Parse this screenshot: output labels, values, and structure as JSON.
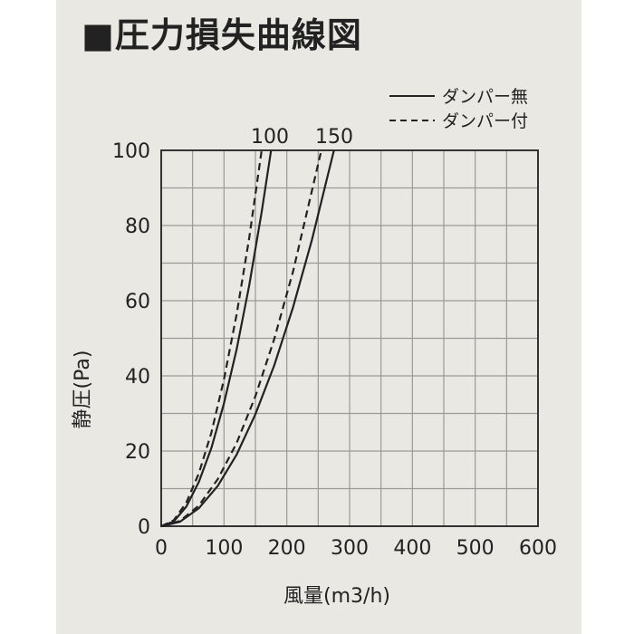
{
  "title": "■圧力損失曲線図",
  "chart_data": {
    "type": "line",
    "xlabel": "風量(m3/h)",
    "ylabel": "静圧(Pa)",
    "xlim": [
      0,
      600
    ],
    "ylim": [
      0,
      100
    ],
    "x_ticks": [
      "0",
      "100",
      "200",
      "300",
      "400",
      "500",
      "600"
    ],
    "y_ticks": [
      "0",
      "20",
      "40",
      "60",
      "80",
      "100"
    ],
    "grid": true,
    "legend_position": "top-right",
    "legend": [
      {
        "label": "ダンパー無",
        "style": "solid"
      },
      {
        "label": "ダンパー付",
        "style": "dashed"
      }
    ],
    "curve_labels": [
      "100",
      "150"
    ],
    "series": [
      {
        "curve": "100",
        "style": "solid",
        "x": [
          0,
          20,
          40,
          60,
          80,
          100,
          120,
          140,
          160,
          175
        ],
        "y": [
          0,
          1.3,
          5.2,
          11.8,
          20.9,
          32.7,
          47.0,
          64.0,
          83.6,
          100
        ]
      },
      {
        "curve": "100",
        "style": "dashed",
        "x": [
          0,
          20,
          40,
          60,
          80,
          100,
          120,
          140,
          160
        ],
        "y": [
          0,
          1.6,
          6.3,
          14.1,
          25.0,
          39.1,
          56.3,
          76.6,
          100
        ]
      },
      {
        "curve": "150",
        "style": "solid",
        "x": [
          0,
          30,
          60,
          90,
          120,
          150,
          180,
          210,
          240,
          275
        ],
        "y": [
          0,
          1.2,
          4.8,
          10.7,
          19.0,
          29.8,
          42.8,
          58.3,
          76.2,
          100
        ]
      },
      {
        "curve": "150",
        "style": "dashed",
        "x": [
          0,
          30,
          60,
          90,
          120,
          150,
          180,
          210,
          255
        ],
        "y": [
          0,
          1.4,
          5.5,
          12.5,
          22.1,
          34.6,
          49.8,
          67.8,
          100
        ]
      }
    ]
  }
}
